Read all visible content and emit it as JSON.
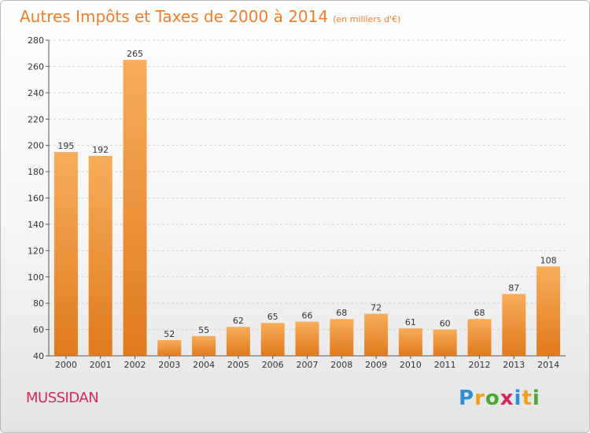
{
  "title": "Autres Impôts et Taxes de 2000 à 2014",
  "unit_note": "(en milliers d'€)",
  "commune": "MUSSIDAN",
  "logo": {
    "letters": [
      "P",
      "r",
      "o",
      "x",
      "i",
      "t",
      "i"
    ],
    "colors": [
      "#2f8fd6",
      "#f0a020",
      "#4aa832",
      "#d8285a",
      "#2f8fd6",
      "#f0a020",
      "#4aa832"
    ]
  },
  "colors": {
    "bar_light": "#f8ad5a",
    "bar_dark": "#e07a1e",
    "title": "#f07e2a",
    "commune": "#d8285a"
  },
  "chart_data": {
    "type": "bar",
    "categories": [
      "2000",
      "2001",
      "2002",
      "2003",
      "2004",
      "2005",
      "2006",
      "2007",
      "2008",
      "2009",
      "2010",
      "2011",
      "2012",
      "2013",
      "2014"
    ],
    "values": [
      195,
      192,
      265,
      52,
      55,
      62,
      65,
      66,
      68,
      72,
      61,
      60,
      68,
      87,
      108
    ],
    "ylim": [
      40,
      280
    ],
    "yticks": [
      40,
      60,
      80,
      100,
      120,
      140,
      160,
      180,
      200,
      220,
      240,
      260,
      280
    ],
    "grid": true,
    "legend": "none"
  }
}
